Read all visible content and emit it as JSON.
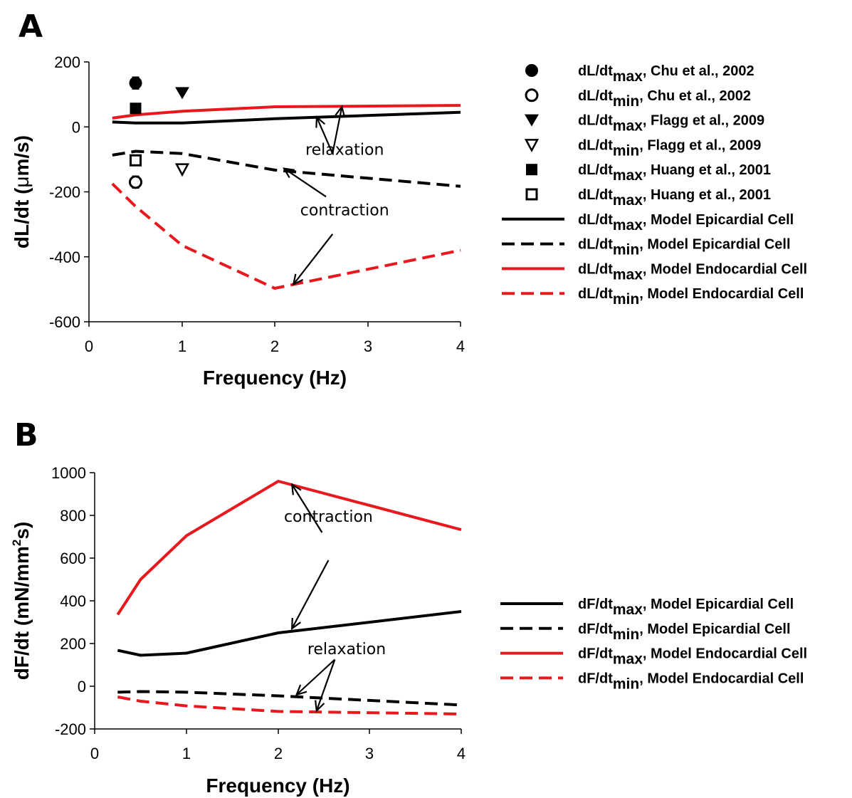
{
  "chart_data": [
    {
      "panel": "A",
      "type": "line",
      "xlabel": "Frequency (Hz)",
      "ylabel_parts": [
        "dL/dt (",
        "μ",
        "m/s)"
      ],
      "ylim": [
        -600,
        200
      ],
      "yticks": [
        -600,
        -400,
        -200,
        0,
        200
      ],
      "x_tick_labels": [
        "0",
        "1",
        "2",
        "3",
        "4"
      ],
      "x_tick_values": [
        0,
        1,
        2,
        3,
        4
      ],
      "x_scale": "nonlinear (0, 1, 2, 3, 4 equally spaced)",
      "grid": false,
      "legend_position": "right",
      "series": [
        {
          "legend_base": "dL/dt",
          "legend_sub": "max",
          "legend_rest": ", Model Epicardial Cell",
          "color": "#000000",
          "dash": "solid",
          "points": [
            [
              0.25,
              15
            ],
            [
              0.5,
              12
            ],
            [
              1,
              12
            ],
            [
              2,
              25
            ],
            [
              4,
              45
            ]
          ]
        },
        {
          "legend_base": "dL/dt",
          "legend_sub": "min",
          "legend_rest": ", Model Epicardial Cell",
          "color": "#000000",
          "dash": "dashed",
          "points": [
            [
              0.25,
              -87
            ],
            [
              0.5,
              -75
            ],
            [
              1,
              -82
            ],
            [
              2,
              -133
            ],
            [
              4,
              -183
            ]
          ]
        },
        {
          "legend_base": "dL/dt",
          "legend_sub": "max",
          "legend_rest": ", Model Endocardial Cell",
          "color": "#e8191e",
          "dash": "solid",
          "points": [
            [
              0.25,
              27
            ],
            [
              0.5,
              37
            ],
            [
              1,
              48
            ],
            [
              2,
              62
            ],
            [
              4,
              66
            ]
          ]
        },
        {
          "legend_base": "dL/dt",
          "legend_sub": "min",
          "legend_rest": ", Model Endocardial Cell",
          "color": "#e8191e",
          "dash": "dashed",
          "points": [
            [
              0.25,
              -175
            ],
            [
              0.5,
              -245
            ],
            [
              1,
              -365
            ],
            [
              2,
              -497
            ],
            [
              4,
              -380
            ]
          ]
        }
      ],
      "experimental": [
        {
          "legend_base": "dL/dt",
          "legend_sub": "max",
          "legend_rest": ", Chu et al., 2002",
          "marker": "filled-circle",
          "x": 0.5,
          "y": 135,
          "error": 18
        },
        {
          "legend_base": "dL/dt",
          "legend_sub": "min",
          "legend_rest": ", Chu et al., 2002",
          "marker": "open-circle",
          "x": 0.5,
          "y": -170,
          "error": 18
        },
        {
          "legend_base": "dL/dt",
          "legend_sub": "max",
          "legend_rest": ", Flagg et al., 2009",
          "marker": "filled-triangle-down",
          "x": 1,
          "y": 105,
          "error": 0
        },
        {
          "legend_base": "dL/dt",
          "legend_sub": "min",
          "legend_rest": ", Flagg et al., 2009",
          "marker": "open-triangle-down",
          "x": 1,
          "y": -130,
          "error": 0
        },
        {
          "legend_base": "dL/dt",
          "legend_sub": "max",
          "legend_rest": ", Huang et al., 2001",
          "marker": "filled-square",
          "x": 0.5,
          "y": 57,
          "error": 0
        },
        {
          "legend_base": "dL/dt",
          "legend_sub": "max",
          "legend_rest": ", Huang et al., 2001",
          "marker": "open-square",
          "x": 0.5,
          "y": -103,
          "error": 0
        }
      ],
      "annotations": [
        {
          "text": "relaxation",
          "label_at": [
            2.75,
            -86
          ],
          "arrows": [
            {
              "from": [
                2.62,
                -82
              ],
              "to": [
                2.45,
                30
              ]
            },
            {
              "from": [
                2.62,
                -82
              ],
              "to": [
                2.72,
                62
              ]
            }
          ]
        },
        {
          "text": "contraction",
          "label_at": [
            2.75,
            -272
          ],
          "arrows": [
            {
              "from": [
                2.55,
                -215
              ],
              "to": [
                2.1,
                -128
              ]
            },
            {
              "from": [
                2.62,
                -330
              ],
              "to": [
                2.2,
                -485
              ]
            }
          ]
        }
      ]
    },
    {
      "panel": "B",
      "type": "line",
      "xlabel": "Frequency (Hz)",
      "ylabel_parts": [
        "dF/dt (mN/mm",
        "2",
        "s)"
      ],
      "ylim": [
        -200,
        1000
      ],
      "yticks": [
        -200,
        0,
        200,
        400,
        600,
        800,
        1000
      ],
      "x_tick_labels": [
        "0",
        "1",
        "2",
        "3",
        "4"
      ],
      "x_tick_values": [
        0,
        1,
        2,
        3,
        4
      ],
      "x_scale": "nonlinear (0, 1, 2, 3, 4 equally spaced)",
      "grid": false,
      "legend_position": "right",
      "series": [
        {
          "legend_base": "dF/dt",
          "legend_sub": "max",
          "legend_rest": ", Model Epicardial Cell",
          "color": "#000000",
          "dash": "solid",
          "points": [
            [
              0.25,
              168
            ],
            [
              0.5,
              145
            ],
            [
              1,
              155
            ],
            [
              2,
              250
            ],
            [
              4,
              350
            ]
          ]
        },
        {
          "legend_base": "dF/dt",
          "legend_sub": "min",
          "legend_rest": ", Model Epicardial Cell",
          "color": "#000000",
          "dash": "dashed",
          "points": [
            [
              0.25,
              -28
            ],
            [
              0.5,
              -25
            ],
            [
              1,
              -28
            ],
            [
              2,
              -45
            ],
            [
              4,
              -88
            ]
          ]
        },
        {
          "legend_base": "dF/dt",
          "legend_sub": "max",
          "legend_rest": ", Model Endocardial Cell",
          "color": "#e8191e",
          "dash": "solid",
          "points": [
            [
              0.25,
              335
            ],
            [
              0.5,
              500
            ],
            [
              1,
              705
            ],
            [
              2,
              960
            ],
            [
              4,
              733
            ]
          ]
        },
        {
          "legend_base": "dF/dt",
          "legend_sub": "min",
          "legend_rest": ", Model Endocardial Cell",
          "color": "#e8191e",
          "dash": "dashed",
          "points": [
            [
              0.25,
              -50
            ],
            [
              0.5,
              -70
            ],
            [
              1,
              -92
            ],
            [
              2,
              -118
            ],
            [
              4,
              -130
            ]
          ]
        }
      ],
      "experimental": [],
      "annotations": [
        {
          "text": "contraction",
          "label_at": [
            2.55,
            770
          ],
          "arrows": [
            {
              "from": [
                2.48,
                720
              ],
              "to": [
                2.15,
                945
              ]
            },
            {
              "from": [
                2.55,
                590
              ],
              "to": [
                2.15,
                270
              ]
            }
          ]
        },
        {
          "text": "relaxation",
          "label_at": [
            2.75,
            150
          ],
          "arrows": [
            {
              "from": [
                2.62,
                125
              ],
              "to": [
                2.2,
                -40
              ]
            },
            {
              "from": [
                2.62,
                125
              ],
              "to": [
                2.42,
                -115
              ]
            }
          ]
        }
      ]
    }
  ]
}
